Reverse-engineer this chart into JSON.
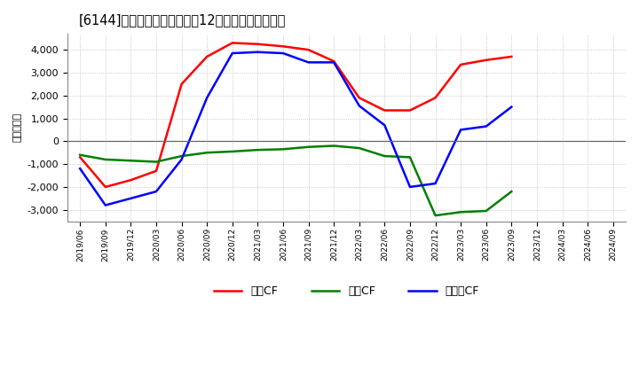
{
  "title": "[慄] キャッシュフローの12か月移動合計の推移",
  "title_display": "[6144]　キャッシュフローの12か月移動合計の推移",
  "ylabel": "（百万円）",
  "x_labels": [
    "2019/06",
    "2019/09",
    "2019/12",
    "2020/03",
    "2020/06",
    "2020/09",
    "2020/12",
    "2021/03",
    "2021/06",
    "2021/09",
    "2021/12",
    "2022/03",
    "2022/06",
    "2022/09",
    "2022/12",
    "2023/03",
    "2023/06",
    "2023/09",
    "2023/12",
    "2024/03",
    "2024/06",
    "2024/09"
  ],
  "eigyo_cf": [
    -700,
    -2000,
    -1700,
    -1300,
    2500,
    3700,
    4300,
    4250,
    4150,
    4000,
    3500,
    1900,
    1350,
    1350,
    1900,
    3350,
    3550,
    3700,
    null,
    null,
    null,
    null
  ],
  "toshi_cf": [
    -600,
    -800,
    -850,
    -900,
    -650,
    -500,
    -450,
    -380,
    -350,
    -250,
    -200,
    -300,
    -650,
    -700,
    -3250,
    -3100,
    -3050,
    -2200,
    null,
    null,
    null,
    null
  ],
  "free_cf": [
    -1200,
    -2800,
    -2500,
    -2200,
    -800,
    1900,
    3850,
    3900,
    3850,
    3450,
    3450,
    1550,
    700,
    -2000,
    -1850,
    500,
    650,
    1500,
    null,
    null,
    null,
    null
  ],
  "eigyo_color": "#ff0000",
  "toshi_color": "#008000",
  "free_color": "#0000ff",
  "ylim": [
    -3500,
    4700
  ],
  "yticks": [
    -3000,
    -2000,
    -1000,
    0,
    1000,
    2000,
    3000,
    4000
  ],
  "bg_color": "#ffffff",
  "grid_color": "#bbbbbb",
  "legend_labels": [
    "営業CF",
    "投資CF",
    "フリーCF"
  ]
}
